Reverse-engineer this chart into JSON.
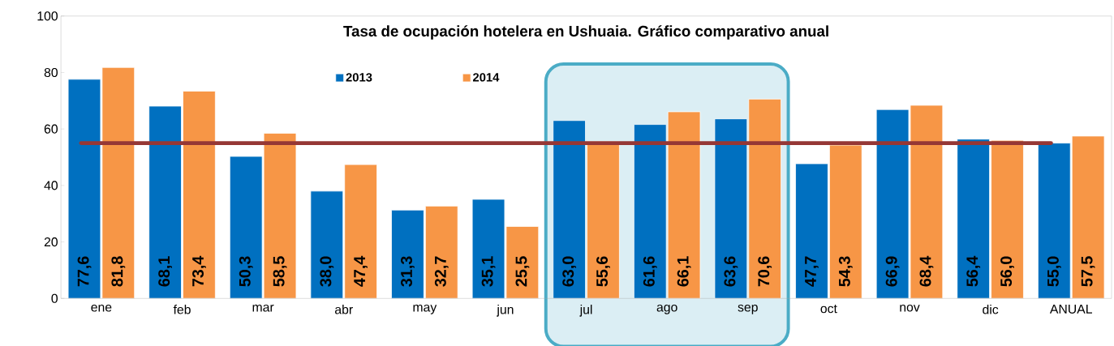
{
  "chart_data": {
    "type": "bar",
    "title": "Tasa de ocupación hotelera en Ushuaia. Gráfico comparativo anual",
    "categories": [
      "ene",
      "feb",
      "mar",
      "abr",
      "may",
      "jun",
      "jul",
      "ago",
      "sep",
      "oct",
      "nov",
      "dic",
      "ANUAL"
    ],
    "series": [
      {
        "name": "2013",
        "color": "#0070c0",
        "values": [
          77.6,
          68.1,
          50.3,
          38.0,
          31.3,
          35.1,
          63.0,
          61.6,
          63.6,
          47.7,
          66.9,
          56.4,
          55.0
        ],
        "value_labels": [
          "77,6",
          "68,1",
          "50,3",
          "38,0",
          "31,3",
          "35,1",
          "63,0",
          "61,6",
          "63,6",
          "47,7",
          "66,9",
          "56,4",
          "55,0"
        ]
      },
      {
        "name": "2014",
        "color": "#f79646",
        "values": [
          81.8,
          73.4,
          58.5,
          47.4,
          32.7,
          25.5,
          55.6,
          66.1,
          70.6,
          54.3,
          68.4,
          56.0,
          57.5
        ],
        "value_labels": [
          "81,8",
          "73,4",
          "58,5",
          "47,4",
          "32,7",
          "25,5",
          "55,6",
          "66,1",
          "70,6",
          "54,3",
          "68,4",
          "56,0",
          "57,5"
        ]
      }
    ],
    "ylim": [
      0,
      100
    ],
    "yticks": [
      0,
      20,
      40,
      60,
      80,
      100
    ],
    "legend": "top",
    "ref_lines": [
      {
        "axis": "y",
        "value": 55,
        "color": "#953735"
      }
    ],
    "bands": [
      {
        "axis": "x",
        "from": "jul",
        "to": "sep",
        "color": "#dbeef4"
      }
    ]
  }
}
